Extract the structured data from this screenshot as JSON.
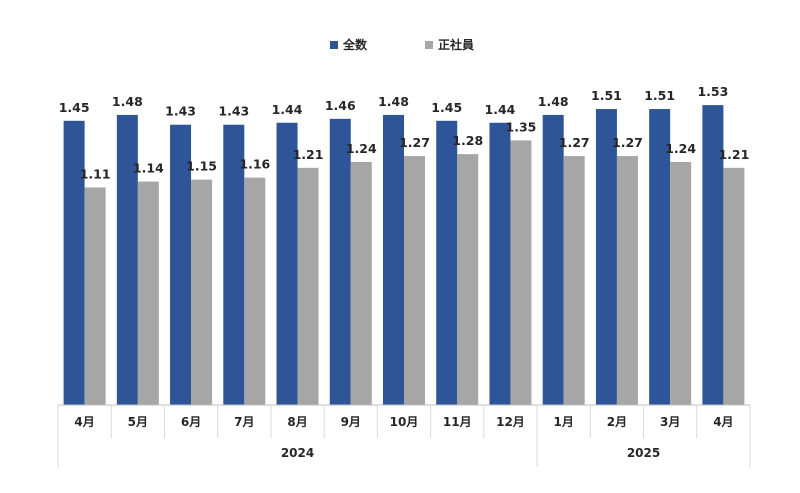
{
  "chart_data": {
    "type": "bar",
    "categories": [
      "4月",
      "5月",
      "6月",
      "7月",
      "8月",
      "9月",
      "10月",
      "11月",
      "12月",
      "1月",
      "2月",
      "3月",
      "4月"
    ],
    "groups": [
      {
        "label": "2024",
        "count": 9
      },
      {
        "label": "2025",
        "count": 4
      }
    ],
    "series": [
      {
        "name": "全数",
        "color": "#2e5597",
        "values": [
          1.45,
          1.48,
          1.43,
          1.43,
          1.44,
          1.46,
          1.48,
          1.45,
          1.44,
          1.48,
          1.51,
          1.51,
          1.53
        ],
        "labels": [
          "1.45",
          "1.48",
          "1.43",
          "1.43",
          "1.44",
          "1.46",
          "1.48",
          "1.45",
          "1.44",
          "1.48",
          "1.51",
          "1.51",
          "1.53"
        ]
      },
      {
        "name": "正社員",
        "color": "#a6a6a6",
        "values": [
          1.11,
          1.14,
          1.15,
          1.16,
          1.21,
          1.24,
          1.27,
          1.28,
          1.35,
          1.27,
          1.27,
          1.24,
          1.21
        ],
        "labels": [
          "1.11",
          "1.14",
          "1.15",
          "1.16",
          "1.21",
          "1.24",
          "1.27",
          "1.28",
          "1.35",
          "1.27",
          "1.27",
          "1.24",
          "1.21"
        ]
      }
    ],
    "ylim": [
      0,
      1.6
    ],
    "legend_position": "top-center",
    "grid": false
  }
}
